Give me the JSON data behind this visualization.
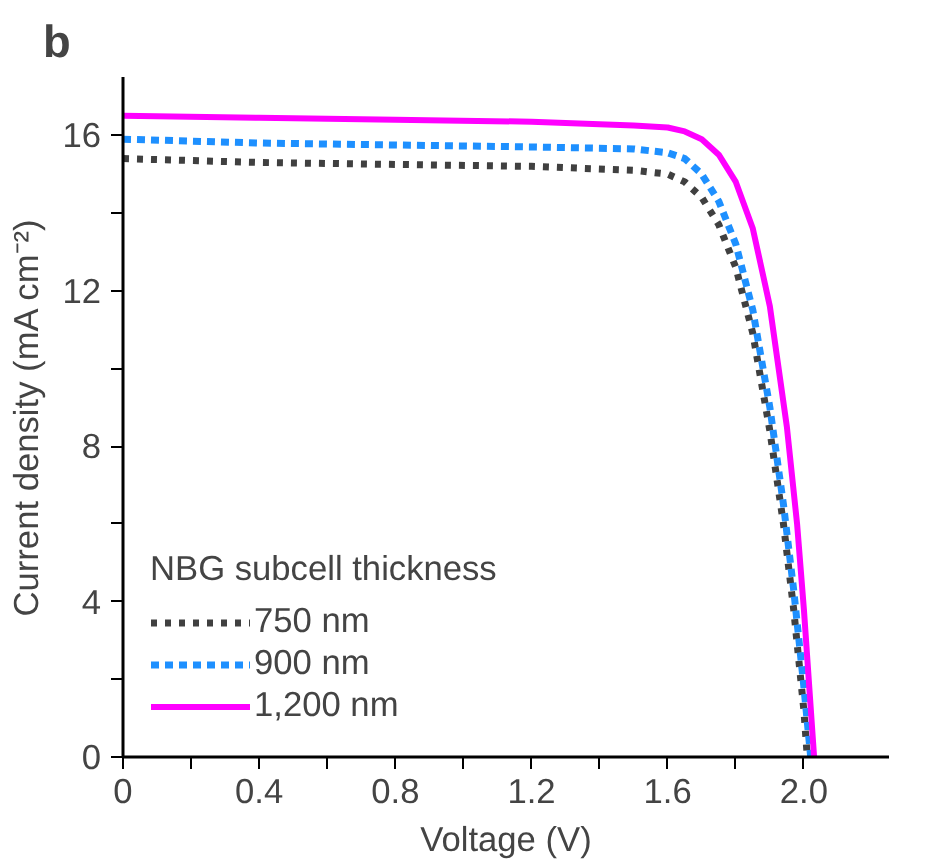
{
  "chart_data": {
    "type": "line",
    "title": "b",
    "xlabel": "Voltage (V)",
    "ylabel": "Current density (mA cm⁻²)",
    "legend_title": "NBG subcell thickness",
    "legend": "left",
    "xlim": [
      0,
      2.25
    ],
    "ylim": [
      0,
      17.5
    ],
    "xticks": [
      0,
      {
        "value": 0.2,
        "label": null
      },
      0.4,
      {
        "value": 0.6,
        "label": null
      },
      0.8,
      {
        "value": 1.0,
        "label": null
      },
      1.2,
      {
        "value": 1.4,
        "label": null
      },
      1.6,
      {
        "value": 1.8,
        "label": null
      },
      {
        "value": 2.0,
        "label": "2.0"
      }
    ],
    "yticks": [
      0,
      {
        "value": 2,
        "label": null
      },
      4,
      {
        "value": 6,
        "label": null
      },
      8,
      {
        "value": 10,
        "label": null
      },
      12,
      {
        "value": 14,
        "label": null
      },
      16
    ],
    "grid": false,
    "marker": "none",
    "series": [
      {
        "name": "750 nm",
        "color": "#404040",
        "line_style": "dotted",
        "x": [
          0,
          0.4,
          0.8,
          1.2,
          1.5,
          1.6,
          1.65,
          1.7,
          1.75,
          1.8,
          1.85,
          1.9,
          1.94,
          1.97,
          2.0,
          2.01
        ],
        "values": [
          15.4,
          15.3,
          15.25,
          15.2,
          15.1,
          15.0,
          14.8,
          14.4,
          13.7,
          12.6,
          10.9,
          8.4,
          6.0,
          3.8,
          1.2,
          0
        ]
      },
      {
        "name": "900 nm",
        "color": "#1e90ff",
        "line_style": "dashed",
        "x": [
          0,
          0.4,
          0.8,
          1.2,
          1.5,
          1.6,
          1.65,
          1.7,
          1.75,
          1.8,
          1.85,
          1.9,
          1.94,
          1.97,
          2.0,
          2.02
        ],
        "values": [
          15.9,
          15.8,
          15.75,
          15.7,
          15.65,
          15.55,
          15.4,
          15.0,
          14.3,
          13.2,
          11.5,
          9.0,
          6.5,
          4.3,
          1.8,
          0
        ]
      },
      {
        "name": "1,200 nm",
        "color": "#ff00ff",
        "line_style": "solid",
        "x": [
          0,
          0.4,
          0.8,
          1.2,
          1.5,
          1.6,
          1.65,
          1.7,
          1.75,
          1.8,
          1.85,
          1.9,
          1.95,
          1.98,
          2.0,
          2.03
        ],
        "values": [
          16.5,
          16.45,
          16.4,
          16.35,
          16.25,
          16.2,
          16.1,
          15.9,
          15.5,
          14.8,
          13.6,
          11.6,
          8.5,
          6.0,
          3.8,
          0
        ]
      }
    ]
  }
}
